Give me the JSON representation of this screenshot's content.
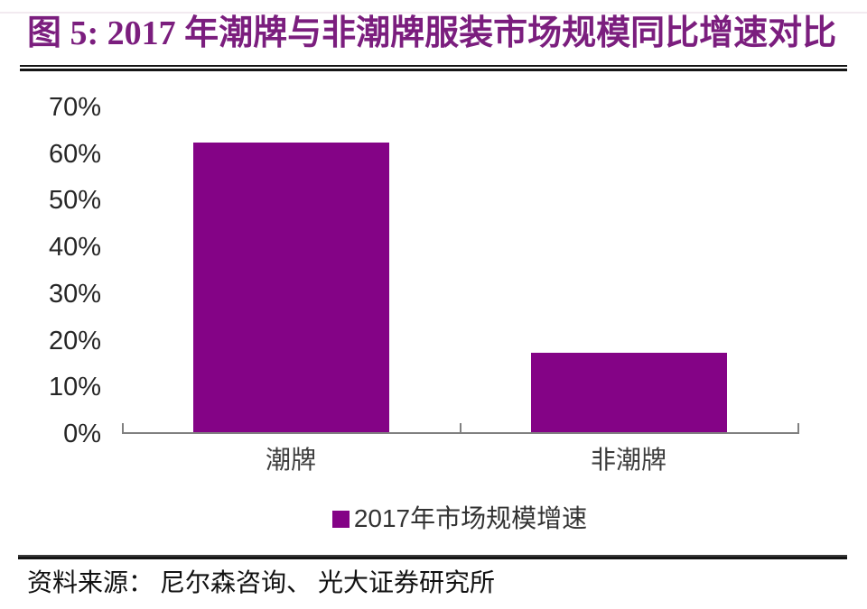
{
  "title": "图 5: 2017 年潮牌与非潮牌服装市场规模同比增速对比",
  "source": "资料来源： 尼尔森咨询、 光大证券研究所",
  "colors": {
    "title": "#7B1E7E",
    "bar": "#840386",
    "axis": "#808080",
    "tick_label": "#262626",
    "category_label": "#3d3d3d",
    "legend_text": "#333333",
    "source_text": "#111111"
  },
  "chart_data": {
    "type": "bar",
    "categories": [
      "潮牌",
      "非潮牌"
    ],
    "series": [
      {
        "name": "2017年市场规模增速",
        "values": [
          62,
          17
        ]
      }
    ],
    "unit": "%",
    "title": "2017 年潮牌与非潮牌服装市场规模同比增速对比",
    "xlabel": "",
    "ylabel": "",
    "ylim": [
      0,
      70
    ],
    "ytick_step": 10,
    "ytick_labels": [
      "0%",
      "10%",
      "20%",
      "30%",
      "40%",
      "50%",
      "60%",
      "70%"
    ],
    "grid": false,
    "legend": "2017年市场规模增速",
    "legend_position": "bottom"
  }
}
